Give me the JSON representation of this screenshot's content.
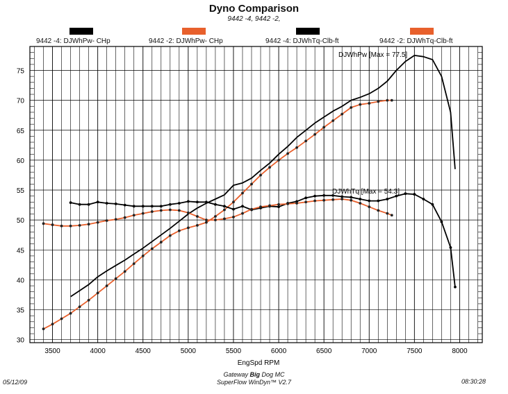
{
  "header": {
    "title": "Dyno Comparison",
    "subtitle": "9442 -4, 9442 -2,"
  },
  "legend": [
    {
      "label": "9442 -4: DJWhPw- CHp",
      "color": "#000000"
    },
    {
      "label": "9442 -2: DJWhPw- CHp",
      "color": "#e8602c"
    },
    {
      "label": "9442 -4: DJWhTq-Clb-ft",
      "color": "#000000"
    },
    {
      "label": "9442 -2: DJWhTq-Clb-ft",
      "color": "#e8602c"
    }
  ],
  "annotations": {
    "power_max": "DJWhPw [Max = 77.5]",
    "torque_max": "DJWhTq [Max = 54.3]"
  },
  "footer": {
    "date": "05/12/09",
    "time": "08:30:28",
    "line1_pre": "Gateway ",
    "line1_bold": "Big",
    "line1_post": " Dog MC",
    "line2": "SuperFlow WinDyn™ V2.7"
  },
  "chart_data": {
    "type": "line",
    "title": "Dyno Comparison",
    "subtitle": "9442 -4, 9442 -2,",
    "xlabel": "EngSpd  RPM",
    "ylabel": "",
    "xlim": [
      3250,
      8250
    ],
    "ylim": [
      29.5,
      79
    ],
    "x_ticks": [
      3500,
      4000,
      4500,
      5000,
      5500,
      6000,
      6500,
      7000,
      7500,
      8000
    ],
    "y_ticks": [
      30,
      35,
      40,
      45,
      50,
      55,
      60,
      65,
      70,
      75
    ],
    "grid": true,
    "legend_position": "top",
    "series": [
      {
        "name": "9442 -4: DJWhPw- CHp",
        "color": "#000000",
        "markers": false,
        "points": [
          [
            3700,
            37.2
          ],
          [
            3800,
            38.2
          ],
          [
            3900,
            39.2
          ],
          [
            4000,
            40.5
          ],
          [
            4100,
            41.5
          ],
          [
            4200,
            42.4
          ],
          [
            4300,
            43.3
          ],
          [
            4400,
            44.3
          ],
          [
            4500,
            45.3
          ],
          [
            4600,
            46.4
          ],
          [
            4700,
            47.5
          ],
          [
            4800,
            48.6
          ],
          [
            4900,
            49.8
          ],
          [
            5000,
            51.0
          ],
          [
            5100,
            52.0
          ],
          [
            5200,
            52.8
          ],
          [
            5300,
            53.5
          ],
          [
            5400,
            54.2
          ],
          [
            5500,
            55.8
          ],
          [
            5600,
            56.2
          ],
          [
            5700,
            57.0
          ],
          [
            5800,
            58.3
          ],
          [
            5900,
            59.5
          ],
          [
            6000,
            61.0
          ],
          [
            6100,
            62.3
          ],
          [
            6200,
            63.8
          ],
          [
            6300,
            65.0
          ],
          [
            6400,
            66.2
          ],
          [
            6500,
            67.2
          ],
          [
            6600,
            68.2
          ],
          [
            6700,
            69.0
          ],
          [
            6800,
            70.0
          ],
          [
            6900,
            70.5
          ],
          [
            7000,
            71.1
          ],
          [
            7100,
            72.0
          ],
          [
            7200,
            73.2
          ],
          [
            7300,
            75.0
          ],
          [
            7400,
            76.5
          ],
          [
            7500,
            77.5
          ],
          [
            7600,
            77.3
          ],
          [
            7700,
            76.8
          ],
          [
            7800,
            74.0
          ],
          [
            7900,
            68.0
          ],
          [
            7950,
            58.5
          ]
        ]
      },
      {
        "name": "9442 -2: DJWhPw- CHp",
        "color": "#e8602c",
        "markers": true,
        "points": [
          [
            3400,
            31.8
          ],
          [
            3500,
            32.6
          ],
          [
            3600,
            33.5
          ],
          [
            3700,
            34.4
          ],
          [
            3800,
            35.5
          ],
          [
            3900,
            36.6
          ],
          [
            4000,
            37.8
          ],
          [
            4100,
            39.0
          ],
          [
            4200,
            40.2
          ],
          [
            4300,
            41.4
          ],
          [
            4400,
            42.7
          ],
          [
            4500,
            44.0
          ],
          [
            4600,
            45.2
          ],
          [
            4700,
            46.3
          ],
          [
            4800,
            47.4
          ],
          [
            4900,
            48.2
          ],
          [
            5000,
            48.7
          ],
          [
            5100,
            49.1
          ],
          [
            5200,
            49.6
          ],
          [
            5300,
            50.6
          ],
          [
            5400,
            51.7
          ],
          [
            5500,
            53.0
          ],
          [
            5600,
            54.5
          ],
          [
            5700,
            56.0
          ],
          [
            5800,
            57.5
          ],
          [
            5900,
            58.8
          ],
          [
            6000,
            60.0
          ],
          [
            6100,
            61.1
          ],
          [
            6200,
            62.1
          ],
          [
            6300,
            63.2
          ],
          [
            6400,
            64.3
          ],
          [
            6500,
            65.5
          ],
          [
            6600,
            66.6
          ],
          [
            6700,
            67.7
          ],
          [
            6800,
            68.8
          ],
          [
            6900,
            69.3
          ],
          [
            7000,
            69.5
          ],
          [
            7100,
            69.8
          ],
          [
            7200,
            70.0
          ],
          [
            7250,
            70.0
          ]
        ]
      },
      {
        "name": "9442 -4: DJWhTq-Clb-ft",
        "color": "#000000",
        "markers": true,
        "points": [
          [
            3700,
            52.9
          ],
          [
            3800,
            52.6
          ],
          [
            3900,
            52.6
          ],
          [
            4000,
            53.0
          ],
          [
            4100,
            52.8
          ],
          [
            4200,
            52.7
          ],
          [
            4300,
            52.5
          ],
          [
            4400,
            52.3
          ],
          [
            4500,
            52.3
          ],
          [
            4600,
            52.3
          ],
          [
            4700,
            52.3
          ],
          [
            4800,
            52.6
          ],
          [
            4900,
            52.8
          ],
          [
            5000,
            53.1
          ],
          [
            5100,
            53.0
          ],
          [
            5200,
            53.0
          ],
          [
            5300,
            52.6
          ],
          [
            5400,
            52.3
          ],
          [
            5500,
            51.8
          ],
          [
            5600,
            52.3
          ],
          [
            5700,
            51.7
          ],
          [
            5800,
            52.0
          ],
          [
            5900,
            52.3
          ],
          [
            6000,
            52.2
          ],
          [
            6100,
            52.8
          ],
          [
            6200,
            53.1
          ],
          [
            6300,
            53.7
          ],
          [
            6400,
            54.0
          ],
          [
            6500,
            54.1
          ],
          [
            6600,
            54.1
          ],
          [
            6700,
            53.9
          ],
          [
            6800,
            53.8
          ],
          [
            6900,
            53.5
          ],
          [
            7000,
            53.2
          ],
          [
            7100,
            53.2
          ],
          [
            7200,
            53.5
          ],
          [
            7300,
            54.0
          ],
          [
            7400,
            54.4
          ],
          [
            7500,
            54.3
          ],
          [
            7600,
            53.5
          ],
          [
            7700,
            52.6
          ],
          [
            7800,
            49.7
          ],
          [
            7900,
            45.4
          ],
          [
            7950,
            38.8
          ]
        ]
      },
      {
        "name": "9442 -2: DJWhTq-Clb-ft",
        "color": "#e8602c",
        "markers": true,
        "points": [
          [
            3400,
            49.4
          ],
          [
            3500,
            49.2
          ],
          [
            3600,
            49.0
          ],
          [
            3700,
            49.0
          ],
          [
            3800,
            49.1
          ],
          [
            3900,
            49.3
          ],
          [
            4000,
            49.6
          ],
          [
            4100,
            49.9
          ],
          [
            4200,
            50.1
          ],
          [
            4300,
            50.4
          ],
          [
            4400,
            50.8
          ],
          [
            4500,
            51.1
          ],
          [
            4600,
            51.4
          ],
          [
            4700,
            51.6
          ],
          [
            4800,
            51.7
          ],
          [
            4900,
            51.6
          ],
          [
            5000,
            51.2
          ],
          [
            5100,
            50.6
          ],
          [
            5200,
            50.0
          ],
          [
            5300,
            50.0
          ],
          [
            5400,
            50.2
          ],
          [
            5500,
            50.5
          ],
          [
            5600,
            51.1
          ],
          [
            5700,
            51.8
          ],
          [
            5800,
            52.2
          ],
          [
            5900,
            52.4
          ],
          [
            6000,
            52.6
          ],
          [
            6100,
            52.7
          ],
          [
            6200,
            52.8
          ],
          [
            6300,
            53.0
          ],
          [
            6400,
            53.2
          ],
          [
            6500,
            53.3
          ],
          [
            6600,
            53.4
          ],
          [
            6700,
            53.5
          ],
          [
            6800,
            53.3
          ],
          [
            6900,
            52.8
          ],
          [
            7000,
            52.2
          ],
          [
            7100,
            51.6
          ],
          [
            7200,
            51.1
          ],
          [
            7250,
            50.8
          ]
        ]
      }
    ]
  }
}
